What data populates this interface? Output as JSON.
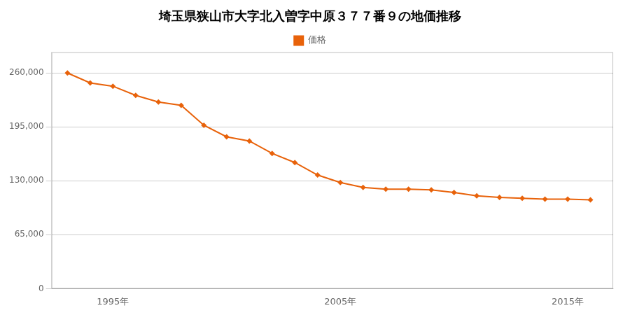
{
  "chart_data": {
    "type": "line",
    "title": "埼玉県狭山市大字北入曽字中原３７７番９の地価推移",
    "x": [
      1993,
      1994,
      1995,
      1996,
      1997,
      1998,
      1999,
      2000,
      2001,
      2002,
      2003,
      2004,
      2005,
      2006,
      2007,
      2008,
      2009,
      2010,
      2011,
      2012,
      2013,
      2014,
      2015,
      2016
    ],
    "series": [
      {
        "name": "価格",
        "color": "#e8620a",
        "marker": "diamond",
        "values": [
          260000,
          248000,
          244000,
          233000,
          225000,
          221000,
          197000,
          183000,
          178000,
          163000,
          152000,
          137000,
          128000,
          122000,
          120000,
          120000,
          119000,
          116000,
          112000,
          110000,
          109000,
          108000,
          108000,
          107000
        ]
      }
    ],
    "xlim": [
      1992.3,
      2017.0
    ],
    "xticks": [
      {
        "value": 1995,
        "label": "1995年"
      },
      {
        "value": 2005,
        "label": "2005年"
      },
      {
        "value": 2015,
        "label": "2015年"
      }
    ],
    "ylim": [
      0,
      285000
    ],
    "yticks": [
      0,
      {
        "value": 65000,
        "label": "65,000"
      },
      {
        "value": 130000,
        "label": "130,000"
      },
      {
        "value": 195000,
        "label": "195,000"
      },
      {
        "value": 260000,
        "label": "260,000"
      }
    ],
    "grid": true,
    "legend": "top"
  }
}
